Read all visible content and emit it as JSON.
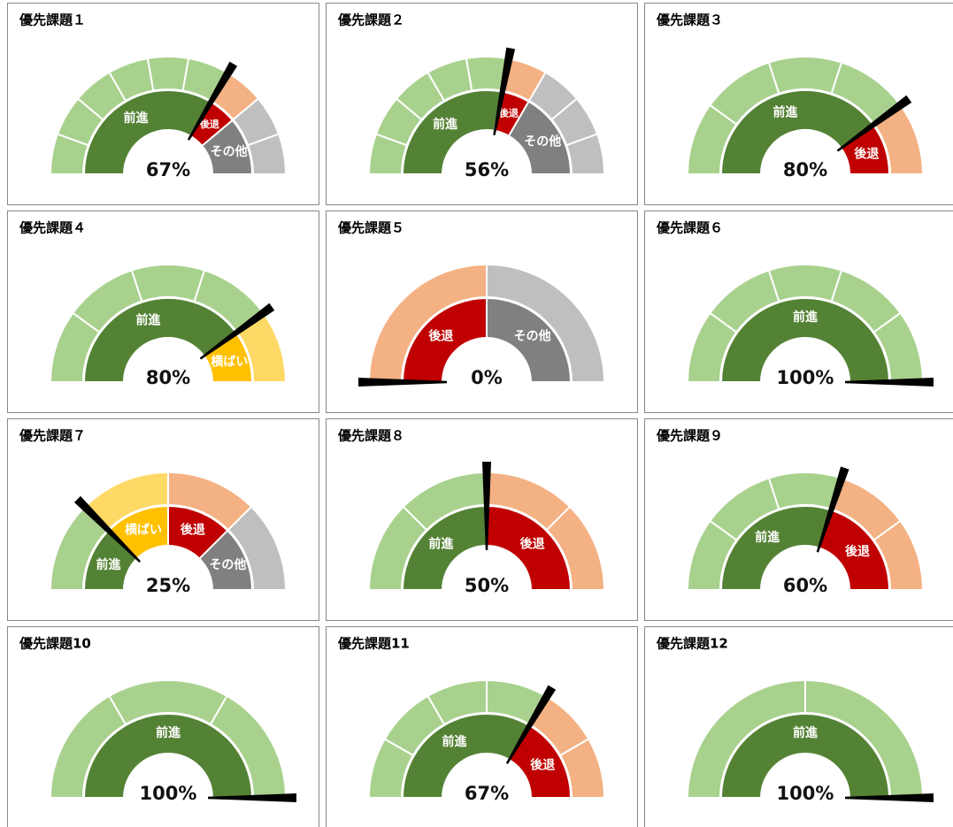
{
  "chart_data": [
    {
      "type": "gauge",
      "title": "優先課題１",
      "value": 67,
      "value_label": "67%",
      "segments": [
        {
          "name": "前進",
          "count": 6,
          "color": "#548235",
          "light_color": "#a9d18e"
        },
        {
          "name": "後退",
          "count": 1,
          "color": "#c00000",
          "light_color": "#f4b183"
        },
        {
          "name": "その他",
          "count": 2,
          "color": "#808080",
          "light_color": "#bfbfbf"
        }
      ]
    },
    {
      "type": "gauge",
      "title": "優先課題２",
      "value": 56,
      "value_label": "56%",
      "segments": [
        {
          "name": "前進",
          "count": 5,
          "color": "#548235",
          "light_color": "#a9d18e"
        },
        {
          "name": "後退",
          "count": 1,
          "color": "#c00000",
          "light_color": "#f4b183"
        },
        {
          "name": "その他",
          "count": 3,
          "color": "#808080",
          "light_color": "#bfbfbf"
        }
      ]
    },
    {
      "type": "gauge",
      "title": "優先課題３",
      "value": 80,
      "value_label": "80%",
      "segments": [
        {
          "name": "前進",
          "count": 4,
          "color": "#548235",
          "light_color": "#a9d18e"
        },
        {
          "name": "後退",
          "count": 1,
          "color": "#c00000",
          "light_color": "#f4b183"
        }
      ]
    },
    {
      "type": "gauge",
      "title": "優先課題４",
      "value": 80,
      "value_label": "80%",
      "segments": [
        {
          "name": "前進",
          "count": 4,
          "color": "#548235",
          "light_color": "#a9d18e"
        },
        {
          "name": "横ばい",
          "count": 1,
          "color": "#ffc000",
          "light_color": "#ffd966"
        }
      ]
    },
    {
      "type": "gauge",
      "title": "優先課題５",
      "value": 0,
      "value_label": "0%",
      "segments": [
        {
          "name": "後退",
          "count": 1,
          "color": "#c00000",
          "light_color": "#f4b183"
        },
        {
          "name": "その他",
          "count": 1,
          "color": "#808080",
          "light_color": "#bfbfbf"
        }
      ]
    },
    {
      "type": "gauge",
      "title": "優先課題６",
      "value": 100,
      "value_label": "100%",
      "segments": [
        {
          "name": "前進",
          "count": 5,
          "color": "#548235",
          "light_color": "#a9d18e"
        }
      ]
    },
    {
      "type": "gauge",
      "title": "優先課題７",
      "value": 25,
      "value_label": "25%",
      "segments": [
        {
          "name": "前進",
          "count": 1,
          "color": "#548235",
          "light_color": "#a9d18e"
        },
        {
          "name": "横ばい",
          "count": 1,
          "color": "#ffc000",
          "light_color": "#ffd966"
        },
        {
          "name": "後退",
          "count": 1,
          "color": "#c00000",
          "light_color": "#f4b183"
        },
        {
          "name": "その他",
          "count": 1,
          "color": "#808080",
          "light_color": "#bfbfbf"
        }
      ]
    },
    {
      "type": "gauge",
      "title": "優先課題８",
      "value": 50,
      "value_label": "50%",
      "segments": [
        {
          "name": "前進",
          "count": 2,
          "color": "#548235",
          "light_color": "#a9d18e"
        },
        {
          "name": "後退",
          "count": 2,
          "color": "#c00000",
          "light_color": "#f4b183"
        }
      ]
    },
    {
      "type": "gauge",
      "title": "優先課題９",
      "value": 60,
      "value_label": "60%",
      "segments": [
        {
          "name": "前進",
          "count": 3,
          "color": "#548235",
          "light_color": "#a9d18e"
        },
        {
          "name": "後退",
          "count": 2,
          "color": "#c00000",
          "light_color": "#f4b183"
        }
      ]
    },
    {
      "type": "gauge",
      "title": "優先課題10",
      "value": 100,
      "value_label": "100%",
      "segments": [
        {
          "name": "前進",
          "count": 3,
          "color": "#548235",
          "light_color": "#a9d18e"
        }
      ]
    },
    {
      "type": "gauge",
      "title": "優先課題11",
      "value": 67,
      "value_label": "67%",
      "segments": [
        {
          "name": "前進",
          "count": 4,
          "color": "#548235",
          "light_color": "#a9d18e"
        },
        {
          "name": "後退",
          "count": 2,
          "color": "#c00000",
          "light_color": "#f4b183"
        }
      ]
    },
    {
      "type": "gauge",
      "title": "優先課題12",
      "value": 100,
      "value_label": "100%",
      "segments": [
        {
          "name": "前進",
          "count": 2,
          "color": "#548235",
          "light_color": "#a9d18e"
        }
      ]
    }
  ]
}
